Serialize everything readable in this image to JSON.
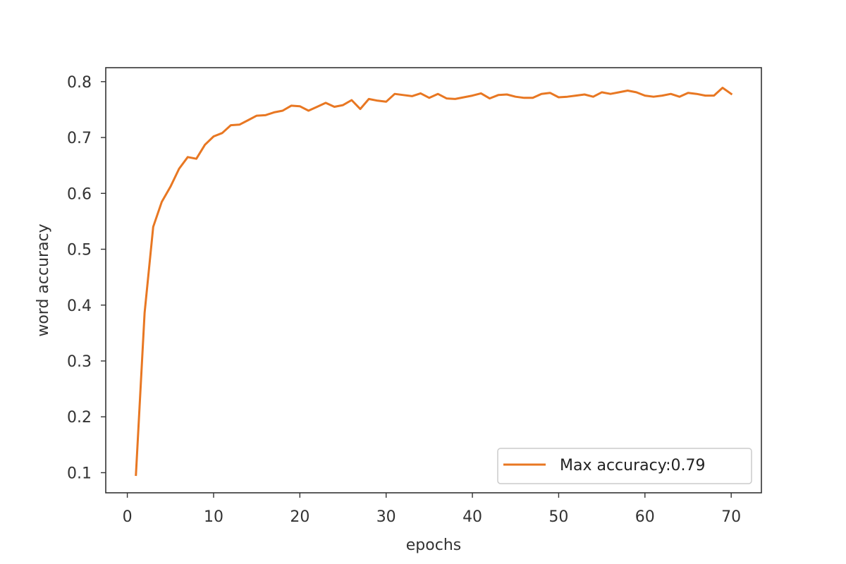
{
  "chart_data": {
    "type": "line",
    "xlabel": "epochs",
    "ylabel": "word accuracy",
    "xlim": [
      -2.5,
      73.5
    ],
    "ylim": [
      0.064,
      0.825
    ],
    "xticks": [
      0,
      10,
      20,
      30,
      40,
      50,
      60,
      70
    ],
    "yticks": [
      0.1,
      0.2,
      0.3,
      0.4,
      0.5,
      0.6,
      0.7,
      0.8
    ],
    "grid": false,
    "legend_position": "lower-right",
    "series": [
      {
        "name": "Max accuracy:0.79",
        "color": "#e87722",
        "x": [
          1,
          2,
          3,
          4,
          5,
          6,
          7,
          8,
          9,
          10,
          11,
          12,
          13,
          14,
          15,
          16,
          17,
          18,
          19,
          20,
          21,
          22,
          23,
          24,
          25,
          26,
          27,
          28,
          29,
          30,
          31,
          32,
          33,
          34,
          35,
          36,
          37,
          38,
          39,
          40,
          41,
          42,
          43,
          44,
          45,
          46,
          47,
          48,
          49,
          50,
          51,
          52,
          53,
          54,
          55,
          56,
          57,
          58,
          59,
          60,
          61,
          62,
          63,
          64,
          65,
          66,
          67,
          68,
          69,
          70
        ],
        "y": [
          0.096,
          0.386,
          0.54,
          0.585,
          0.612,
          0.644,
          0.665,
          0.662,
          0.687,
          0.702,
          0.708,
          0.722,
          0.723,
          0.731,
          0.739,
          0.74,
          0.745,
          0.748,
          0.757,
          0.756,
          0.748,
          0.755,
          0.762,
          0.755,
          0.758,
          0.767,
          0.751,
          0.769,
          0.766,
          0.764,
          0.778,
          0.776,
          0.774,
          0.779,
          0.771,
          0.778,
          0.77,
          0.769,
          0.772,
          0.775,
          0.779,
          0.77,
          0.776,
          0.777,
          0.773,
          0.771,
          0.771,
          0.778,
          0.78,
          0.772,
          0.773,
          0.775,
          0.777,
          0.773,
          0.781,
          0.778,
          0.781,
          0.784,
          0.781,
          0.775,
          0.773,
          0.775,
          0.778,
          0.773,
          0.78,
          0.778,
          0.775,
          0.775,
          0.789,
          0.778
        ]
      }
    ]
  }
}
